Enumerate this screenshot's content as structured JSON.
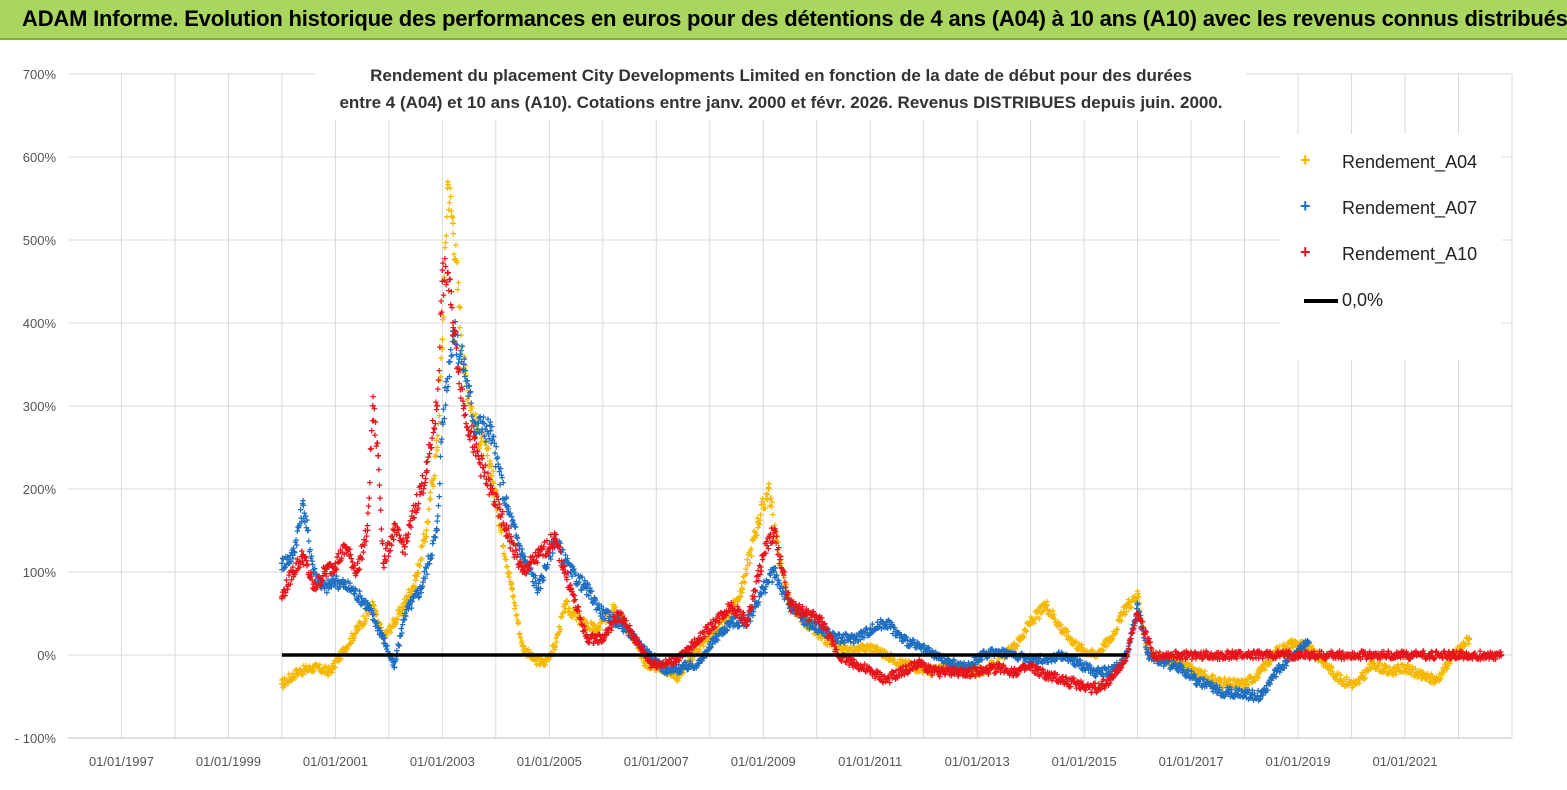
{
  "header": {
    "title": "ADAM Informe. Evolution historique des performances en euros pour des détentions de 4 ans (A04) à 10 ans (A10) avec les revenus connus distribués"
  },
  "chart_data": {
    "type": "scatter",
    "title": "Rendement du placement City Developments Limited en fonction de la date de début pour des durées",
    "subtitle": "entre 4 (A04) et 10 ans (A10).  Cotations entre janv. 2000 et févr. 2026. Revenus DISTRIBUES depuis juin. 2000.",
    "xlabel": "",
    "ylabel": "",
    "x_tick_labels": [
      "01/01/1997",
      "01/01/1999",
      "01/01/2001",
      "01/01/2003",
      "01/01/2005",
      "01/01/2007",
      "01/01/2009",
      "01/01/2011",
      "01/01/2013",
      "01/01/2015",
      "01/01/2017",
      "01/01/2019",
      "01/01/2021"
    ],
    "xlim": [
      1996.0,
      2023.0
    ],
    "y_tick_labels": [
      "700%",
      "600%",
      "500%",
      "400%",
      "300%",
      "200%",
      "100%",
      "0%",
      "- 100%"
    ],
    "ylim": [
      -100,
      700
    ],
    "grid": true,
    "legend_position": "top-right",
    "series": [
      {
        "name": "Rendement_A04",
        "color": "#f5b800",
        "marker": "+",
        "x": [
          2000.0,
          2000.3,
          2000.6,
          2000.9,
          2001.1,
          2001.4,
          2001.7,
          2001.9,
          2002.2,
          2002.5,
          2002.7,
          2002.9,
          2003.0,
          2003.1,
          2003.2,
          2003.4,
          2003.6,
          2003.9,
          2004.1,
          2004.3,
          2004.5,
          2004.7,
          2004.9,
          2005.1,
          2005.3,
          2005.6,
          2005.9,
          2006.2,
          2006.5,
          2006.8,
          2007.1,
          2007.4,
          2007.7,
          2008.0,
          2008.3,
          2008.6,
          2008.9,
          2009.1,
          2009.3,
          2009.5,
          2009.8,
          2010.1,
          2010.4,
          2010.7,
          2011.0,
          2011.3,
          2011.6,
          2011.9,
          2012.2,
          2012.5,
          2012.8,
          2013.1,
          2013.4,
          2013.7,
          2014.0,
          2014.3,
          2014.6,
          2014.9,
          2015.2,
          2015.5,
          2015.8,
          2016.0,
          2016.2,
          2016.5,
          2016.8,
          2017.1,
          2017.4,
          2017.7,
          2018.0,
          2018.3,
          2018.6,
          2018.9,
          2019.2,
          2019.5,
          2019.8,
          2020.1,
          2020.4,
          2020.7,
          2021.0,
          2021.3,
          2021.6,
          2021.9,
          2022.2
        ],
        "y": [
          -35,
          -20,
          -15,
          -20,
          0,
          30,
          60,
          20,
          50,
          90,
          150,
          250,
          380,
          570,
          520,
          350,
          280,
          230,
          150,
          80,
          10,
          -5,
          -10,
          10,
          60,
          40,
          30,
          60,
          30,
          -10,
          -15,
          -25,
          0,
          25,
          40,
          80,
          160,
          200,
          120,
          60,
          40,
          20,
          10,
          5,
          10,
          0,
          -10,
          -15,
          -20,
          -10,
          -20,
          -20,
          -5,
          10,
          40,
          60,
          30,
          10,
          0,
          20,
          60,
          70,
          0,
          -5,
          -10,
          -20,
          -30,
          -35,
          -35,
          -20,
          5,
          15,
          10,
          -10,
          -30,
          -35,
          -10,
          -20,
          -15,
          -25,
          -30,
          0,
          20
        ]
      },
      {
        "name": "Rendement_A07",
        "color": "#1f6fc2",
        "marker": "+",
        "x": [
          2000.0,
          2000.2,
          2000.4,
          2000.6,
          2000.8,
          2001.0,
          2001.3,
          2001.6,
          2001.9,
          2002.1,
          2002.3,
          2002.6,
          2002.9,
          2003.0,
          2003.2,
          2003.4,
          2003.6,
          2003.9,
          2004.2,
          2004.5,
          2004.8,
          2005.1,
          2005.4,
          2005.7,
          2006.0,
          2006.3,
          2006.6,
          2006.9,
          2007.2,
          2007.5,
          2007.8,
          2008.1,
          2008.4,
          2008.7,
          2009.0,
          2009.2,
          2009.5,
          2009.8,
          2010.1,
          2010.4,
          2010.7,
          2011.0,
          2011.3,
          2011.6,
          2011.9,
          2012.2,
          2012.5,
          2012.8,
          2013.1,
          2013.4,
          2013.7,
          2014.0,
          2014.3,
          2014.6,
          2014.9,
          2015.2,
          2015.5,
          2015.8,
          2016.0,
          2016.2,
          2016.5,
          2016.8,
          2017.1,
          2017.4,
          2017.7,
          2018.0,
          2018.3,
          2018.6,
          2018.9,
          2019.2
        ],
        "y": [
          110,
          120,
          180,
          100,
          80,
          90,
          80,
          60,
          20,
          -15,
          50,
          80,
          150,
          280,
          390,
          350,
          280,
          270,
          180,
          120,
          80,
          140,
          100,
          80,
          50,
          40,
          20,
          0,
          -20,
          -15,
          -10,
          20,
          40,
          40,
          80,
          100,
          60,
          40,
          30,
          20,
          20,
          30,
          40,
          20,
          10,
          0,
          -10,
          -15,
          0,
          5,
          0,
          -5,
          -5,
          0,
          -10,
          -20,
          -20,
          0,
          60,
          0,
          -10,
          -15,
          -30,
          -40,
          -45,
          -45,
          -50,
          -20,
          0,
          15
        ]
      },
      {
        "name": "Rendement_A10",
        "color": "#e8141b",
        "marker": "+",
        "x": [
          2000.0,
          2000.2,
          2000.4,
          2000.6,
          2000.8,
          2001.0,
          2001.2,
          2001.4,
          2001.6,
          2001.7,
          2001.8,
          2001.9,
          2002.1,
          2002.3,
          2002.5,
          2002.7,
          2002.9,
          2003.0,
          2003.1,
          2003.2,
          2003.4,
          2003.6,
          2003.9,
          2004.2,
          2004.5,
          2004.8,
          2005.1,
          2005.4,
          2005.7,
          2006.0,
          2006.3,
          2006.6,
          2006.9,
          2007.2,
          2007.5,
          2007.8,
          2008.1,
          2008.4,
          2008.7,
          2009.0,
          2009.2,
          2009.5,
          2009.8,
          2010.1,
          2010.4,
          2010.7,
          2011.0,
          2011.3,
          2011.6,
          2011.9,
          2012.2,
          2012.5,
          2012.8,
          2013.1,
          2013.4,
          2013.7,
          2014.0,
          2014.3,
          2014.6,
          2014.9,
          2015.2,
          2015.5,
          2015.8,
          2016.0,
          2016.3,
          2016.8,
          2017.3,
          2017.8,
          2018.3,
          2018.8,
          2019.3,
          2019.8,
          2020.3,
          2020.8,
          2021.3,
          2021.8,
          2022.3,
          2022.8
        ],
        "y": [
          70,
          100,
          120,
          80,
          100,
          110,
          130,
          100,
          150,
          300,
          240,
          110,
          150,
          130,
          180,
          220,
          300,
          450,
          460,
          400,
          300,
          250,
          200,
          150,
          100,
          120,
          140,
          80,
          20,
          20,
          50,
          20,
          -10,
          -10,
          0,
          20,
          40,
          60,
          40,
          120,
          150,
          60,
          50,
          40,
          0,
          -10,
          -20,
          -30,
          -20,
          -10,
          -20,
          -20,
          -20,
          -20,
          -15,
          -20,
          -15,
          -25,
          -30,
          -35,
          -40,
          -30,
          0,
          50,
          0,
          0,
          0,
          0,
          0,
          0,
          0,
          0,
          0,
          0,
          0,
          0,
          0,
          0
        ]
      },
      {
        "name": "0,0%",
        "color": "#000000",
        "marker": "line",
        "x": [
          2000.0,
          2015.8
        ],
        "y": [
          0,
          0
        ]
      }
    ]
  }
}
